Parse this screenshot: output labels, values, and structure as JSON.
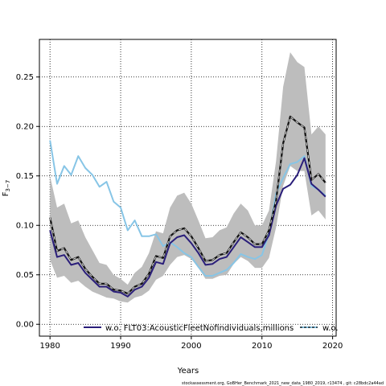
{
  "chart_data": {
    "type": "line",
    "xlabel": "Years",
    "ylabel": "F",
    "ylabel_sub": "3−7",
    "xlim": [
      1978.5,
      2020.5
    ],
    "ylim": [
      -0.012,
      0.288
    ],
    "xticks": [
      1980,
      1990,
      2000,
      2010,
      2020
    ],
    "yticks": [
      0.0,
      0.05,
      0.1,
      0.15,
      0.2,
      0.25
    ],
    "ytick_labels": [
      "0.00",
      "0.05",
      "0.10",
      "0.15",
      "0.20",
      "0.25"
    ],
    "grid": true,
    "legend_position": "bottom",
    "band": {
      "x": [
        1980,
        1981,
        1982,
        1983,
        1984,
        1985,
        1986,
        1987,
        1988,
        1989,
        1990,
        1991,
        1992,
        1993,
        1994,
        1995,
        1996,
        1997,
        1998,
        1999,
        2000,
        2001,
        2002,
        2003,
        2004,
        2005,
        2006,
        2007,
        2008,
        2009,
        2010,
        2011,
        2012,
        2013,
        2014,
        2015,
        2016,
        2017,
        2018,
        2019
      ],
      "upper": [
        0.15,
        0.118,
        0.122,
        0.102,
        0.105,
        0.088,
        0.075,
        0.062,
        0.06,
        0.05,
        0.046,
        0.04,
        0.052,
        0.058,
        0.072,
        0.094,
        0.092,
        0.118,
        0.13,
        0.133,
        0.122,
        0.105,
        0.087,
        0.088,
        0.095,
        0.098,
        0.112,
        0.122,
        0.115,
        0.1,
        0.1,
        0.115,
        0.165,
        0.24,
        0.275,
        0.265,
        0.26,
        0.192,
        0.2,
        0.192
      ],
      "lower": [
        0.065,
        0.047,
        0.049,
        0.042,
        0.044,
        0.038,
        0.033,
        0.03,
        0.027,
        0.026,
        0.023,
        0.022,
        0.027,
        0.029,
        0.034,
        0.045,
        0.049,
        0.06,
        0.068,
        0.07,
        0.066,
        0.057,
        0.046,
        0.046,
        0.049,
        0.05,
        0.061,
        0.068,
        0.064,
        0.057,
        0.057,
        0.067,
        0.098,
        0.14,
        0.16,
        0.155,
        0.155,
        0.11,
        0.115,
        0.106
      ]
    },
    "series": [
      {
        "name": "w.o. FLT03:AcousticFleetNofindividuals,millions",
        "color": "#2a1e7a",
        "x": [
          1980,
          1981,
          1982,
          1983,
          1984,
          1985,
          1986,
          1987,
          1988,
          1989,
          1990,
          1991,
          1992,
          1993,
          1994,
          1995,
          1996,
          1997,
          1998,
          1999,
          2000,
          2001,
          2002,
          2003,
          2004,
          2005,
          2006,
          2007,
          2008,
          2009,
          2010,
          2011,
          2012,
          2013,
          2014,
          2015,
          2016,
          2017,
          2018,
          2019
        ],
        "values": [
          0.095,
          0.068,
          0.07,
          0.06,
          0.062,
          0.052,
          0.045,
          0.038,
          0.038,
          0.033,
          0.032,
          0.028,
          0.035,
          0.038,
          0.047,
          0.063,
          0.061,
          0.082,
          0.088,
          0.09,
          0.082,
          0.072,
          0.06,
          0.061,
          0.066,
          0.068,
          0.078,
          0.088,
          0.083,
          0.078,
          0.078,
          0.09,
          0.12,
          0.137,
          0.141,
          0.151,
          0.168,
          0.142,
          0.136,
          0.129
        ]
      },
      {
        "name": "w.o.",
        "color": "#87c5e6",
        "x": [
          1980,
          1981,
          1982,
          1983,
          1984,
          1985,
          1986,
          1987,
          1988,
          1989,
          1990,
          1991,
          1992,
          1993,
          1994,
          1995,
          1996,
          1997,
          1998,
          1999,
          2000,
          2001,
          2002,
          2003,
          2004,
          2005,
          2006,
          2007,
          2008,
          2009,
          2010,
          2011,
          2012,
          2013,
          2014,
          2015,
          2016,
          2017,
          2018,
          2019
        ],
        "values": [
          0.186,
          0.142,
          0.16,
          0.151,
          0.17,
          0.158,
          0.151,
          0.139,
          0.144,
          0.124,
          0.118,
          0.095,
          0.105,
          0.089,
          0.089,
          0.091,
          0.079,
          0.083,
          0.078,
          0.072,
          0.068,
          0.058,
          0.049,
          0.049,
          0.052,
          0.055,
          0.062,
          0.071,
          0.068,
          0.066,
          0.07,
          0.092,
          0.132,
          0.148,
          0.162,
          0.164,
          0.17,
          0.14,
          0.136,
          0.13
        ]
      },
      {
        "name": "",
        "color": "#111111",
        "dashed": true,
        "x": [
          1980,
          1981,
          1982,
          1983,
          1984,
          1985,
          1986,
          1987,
          1988,
          1989,
          1990,
          1991,
          1992,
          1993,
          1994,
          1995,
          1996,
          1997,
          1998,
          1999,
          2000,
          2001,
          2002,
          2003,
          2004,
          2005,
          2006,
          2007,
          2008,
          2009,
          2010,
          2011,
          2012,
          2013,
          2014,
          2015,
          2016,
          2017,
          2018,
          2019
        ],
        "values": [
          0.108,
          0.074,
          0.077,
          0.065,
          0.068,
          0.056,
          0.048,
          0.041,
          0.041,
          0.035,
          0.034,
          0.031,
          0.038,
          0.041,
          0.051,
          0.069,
          0.067,
          0.089,
          0.095,
          0.097,
          0.089,
          0.077,
          0.064,
          0.065,
          0.07,
          0.072,
          0.083,
          0.093,
          0.088,
          0.081,
          0.081,
          0.095,
          0.125,
          0.183,
          0.21,
          0.204,
          0.199,
          0.146,
          0.152,
          0.143
        ]
      }
    ],
    "band_color": "#bdbdbd",
    "footer": "stockassessment.org, GoBHer_Benchmark_2021_new_data_1980_2019, r13474 , git: c28bdc2a44ad"
  }
}
